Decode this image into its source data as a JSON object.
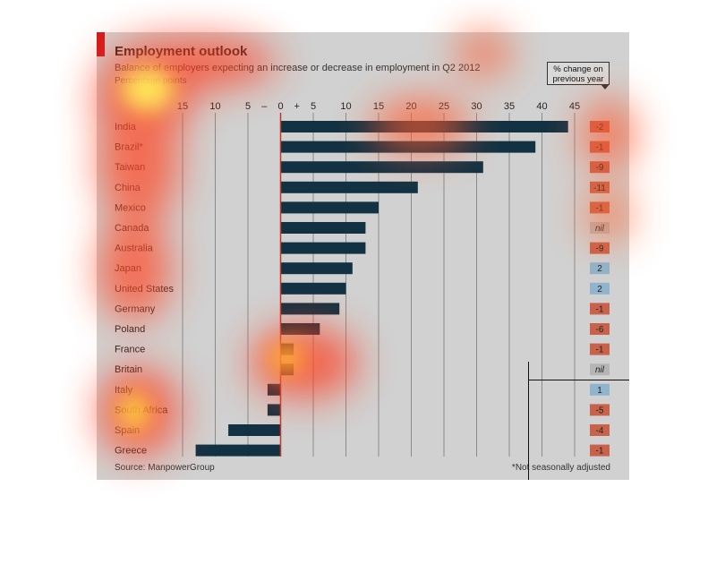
{
  "title": "Employment outlook",
  "subtitle": "Balance of employers expecting an increase or decrease in employment in Q2 2012",
  "unit_label": "Percentage points",
  "change_header_line1": "% change on",
  "change_header_line2": "previous year",
  "source": "Source: ManpowerGroup",
  "footnote": "*Not seasonally adjusted",
  "colors": {
    "bar": "#123244",
    "negative_change": "#c8624a",
    "positive_change": "#8fb4cc",
    "nil_change": "#b5b5b5",
    "zero_line": "#c0392b"
  },
  "chart_data": {
    "type": "bar",
    "orientation": "horizontal",
    "categories": [
      "India",
      "Brazil*",
      "Taiwan",
      "China",
      "Mexico",
      "Canada",
      "Australia",
      "Japan",
      "United States",
      "Germany",
      "Poland",
      "France",
      "Britain",
      "Italy",
      "South Africa",
      "Spain",
      "Greece"
    ],
    "values": [
      44,
      39,
      31,
      21,
      15,
      13,
      13,
      11,
      10,
      9,
      6,
      2,
      2,
      -2,
      -2,
      -8,
      -13
    ],
    "change_on_previous_year": [
      "-2",
      "-1",
      "-9",
      "-11",
      "-1",
      "nil",
      "-9",
      "2",
      "2",
      "-1",
      "-6",
      "-1",
      "nil",
      "1",
      "-5",
      "-4",
      "-1"
    ],
    "xlim": [
      -15,
      45
    ],
    "x_ticks": [
      {
        "value": -15,
        "label": "15"
      },
      {
        "value": -10,
        "label": "10"
      },
      {
        "value": -5,
        "label": "5"
      },
      {
        "value": -2.5,
        "label": "–"
      },
      {
        "value": 0,
        "label": "0"
      },
      {
        "value": 2.5,
        "label": "+"
      },
      {
        "value": 5,
        "label": "5"
      },
      {
        "value": 10,
        "label": "10"
      },
      {
        "value": 15,
        "label": "15"
      },
      {
        "value": 20,
        "label": "20"
      },
      {
        "value": 25,
        "label": "25"
      },
      {
        "value": 30,
        "label": "30"
      },
      {
        "value": 35,
        "label": "35"
      },
      {
        "value": 40,
        "label": "40"
      },
      {
        "value": 45,
        "label": "45"
      }
    ],
    "grid": true
  }
}
